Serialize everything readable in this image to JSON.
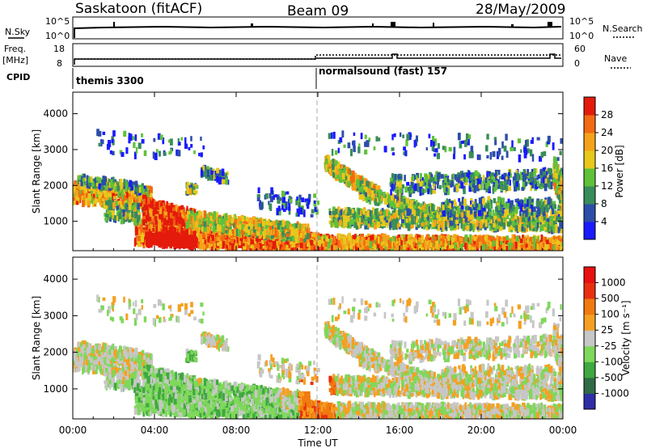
{
  "header": {
    "station": "Saskatoon (fitACF)",
    "beam": "Beam 09",
    "date": "28/May/2009"
  },
  "strip_labels": {
    "nsky": "N.Sky",
    "nsky_ticks": [
      "10^5",
      "10^0"
    ],
    "nsearch": "N.Search",
    "nsearch_ticks": [
      "10^5",
      "10^0"
    ],
    "freq": "Freq.",
    "freq_unit": "[MHz]",
    "freq_ticks": [
      "18",
      "8"
    ],
    "nave": "Nave",
    "nave_ticks": [
      "60",
      "0"
    ],
    "cpid": "CPID"
  },
  "cpid_segments": [
    {
      "label": "themis 3300",
      "start_hour": 0
    },
    {
      "label": "normalsound (fast) 157",
      "start_hour": 12
    }
  ],
  "chart_data": [
    {
      "type": "heatmap",
      "panel": "power",
      "ylabel": "Slant Range [km]",
      "ylim": [
        180,
        4600
      ],
      "yticks": [
        "1000",
        "2000",
        "3000",
        "4000"
      ],
      "xlim_hours": [
        0,
        24
      ],
      "colorbar_label": "Power [dB]",
      "colorbar_ticks": [
        "4",
        "8",
        "12",
        "16",
        "20",
        "24",
        "28"
      ],
      "colorbar_colors": [
        "#1a1aff",
        "#2c4ea8",
        "#3a8c5a",
        "#5fc23a",
        "#e8c81c",
        "#f5a31a",
        "#f26a12",
        "#e41b0c"
      ]
    },
    {
      "type": "heatmap",
      "panel": "velocity",
      "ylabel": "Slant Range [km]",
      "ylim": [
        180,
        4600
      ],
      "yticks": [
        "1000",
        "2000",
        "3000",
        "4000"
      ],
      "xlim_hours": [
        0,
        24
      ],
      "colorbar_label": "Velocity [m s⁻¹]",
      "colorbar_ticks": [
        "1000",
        "500",
        "100",
        "25",
        "-25",
        "-100",
        "-500",
        "-1000"
      ],
      "colorbar_colors": [
        "#2e2ea8",
        "#2f6b46",
        "#3fa840",
        "#7ed85a",
        "#c7c7c7",
        "#f5a020",
        "#f07a10",
        "#e83010",
        "#e81010"
      ]
    }
  ],
  "xaxis": {
    "ticks": [
      "00:00",
      "04:00",
      "08:00",
      "12:00",
      "16:00",
      "20:00",
      "00:00"
    ],
    "label": "Time UT"
  }
}
